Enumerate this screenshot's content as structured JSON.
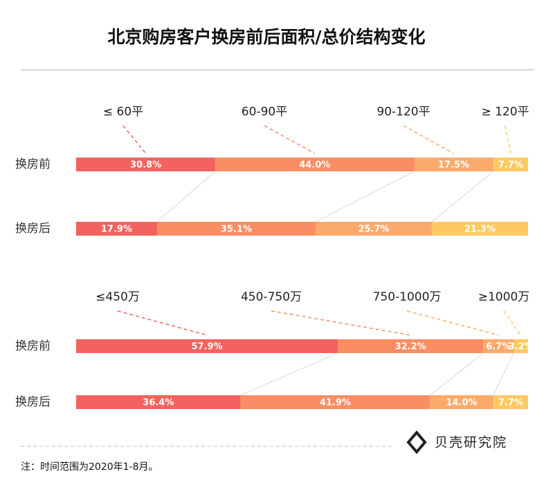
{
  "title": "北京购房客户换房前后面积/总价结构变化",
  "chart_data": [
    {
      "type": "bar",
      "orientation": "horizontal",
      "stacked": true,
      "categories": [
        "换房前",
        "换房后"
      ],
      "series": [
        {
          "name": "≤ 60平",
          "color": "#f2625e",
          "values": [
            30.8,
            17.9
          ],
          "value_labels": [
            "30.8%",
            "17.9%"
          ]
        },
        {
          "name": "60-90平",
          "color": "#f98d63",
          "values": [
            44.0,
            35.1
          ],
          "value_labels": [
            "44.0%",
            "35.1%"
          ]
        },
        {
          "name": "90-120平",
          "color": "#fbaa6b",
          "values": [
            17.5,
            25.7
          ],
          "value_labels": [
            "17.5%",
            "25.7%"
          ]
        },
        {
          "name": "≥ 120平",
          "color": "#fdc962",
          "values": [
            7.7,
            21.3
          ],
          "value_labels": [
            "7.7%",
            "21.3%"
          ]
        }
      ]
    },
    {
      "type": "bar",
      "orientation": "horizontal",
      "stacked": true,
      "categories": [
        "换房前",
        "换房后"
      ],
      "series": [
        {
          "name": "≤450万",
          "color": "#f2625e",
          "values": [
            57.9,
            36.4
          ],
          "value_labels": [
            "57.9%",
            "36.4%"
          ]
        },
        {
          "name": "450-750万",
          "color": "#f98d63",
          "values": [
            32.2,
            41.9
          ],
          "value_labels": [
            "32.2%",
            "41.9%"
          ]
        },
        {
          "name": "750-1000万",
          "color": "#fbaa6b",
          "values": [
            6.7,
            14.0
          ],
          "value_labels": [
            "6.7%",
            "14.0%"
          ]
        },
        {
          "name": "≥1000万",
          "color": "#fdc962",
          "values": [
            3.2,
            7.7
          ],
          "value_labels": [
            "3.2%",
            "7.7%"
          ]
        }
      ]
    }
  ],
  "brand": "贝壳研究院",
  "note": "注：时间范围为2020年1-8月。"
}
